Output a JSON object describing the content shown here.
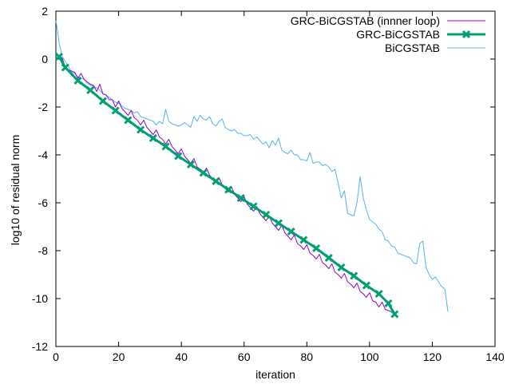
{
  "chart_data": {
    "type": "line",
    "xlabel": "iteration",
    "ylabel": "log10 of residual norm",
    "xlim": [
      0,
      140
    ],
    "ylim": [
      -12,
      2
    ],
    "xticks": [
      "0",
      "20",
      "40",
      "60",
      "80",
      "100",
      "120",
      "140"
    ],
    "yticks": [
      "2",
      "0",
      "-2",
      "-4",
      "-6",
      "-8",
      "-10",
      "-12"
    ],
    "grid": false,
    "legend_position": "top-right",
    "series": [
      {
        "name": "GRC-BiCGSTAB (innner loop)",
        "color": "#9400d3",
        "style": "thin",
        "x": [
          1,
          2,
          3,
          4,
          5,
          6,
          7,
          8,
          9,
          10,
          11,
          12,
          13,
          14,
          15,
          16,
          17,
          18,
          19,
          20,
          21,
          22,
          23,
          24,
          25,
          26,
          27,
          28,
          29,
          30,
          31,
          32,
          33,
          34,
          35,
          36,
          37,
          38,
          39,
          40,
          41,
          42,
          43,
          44,
          45,
          46,
          47,
          48,
          49,
          50,
          51,
          52,
          53,
          54,
          55,
          56,
          57,
          58,
          59,
          60,
          61,
          62,
          63,
          64,
          65,
          66,
          67,
          68,
          69,
          70,
          71,
          72,
          73,
          74,
          75,
          76,
          77,
          78,
          79,
          80,
          81,
          82,
          83,
          84,
          85,
          86,
          87,
          88,
          89,
          90,
          91,
          92,
          93,
          94,
          95,
          96,
          97,
          98,
          99,
          100,
          101,
          102,
          103,
          104,
          105,
          106,
          107,
          108
        ],
        "y": [
          0.1,
          0.05,
          -0.35,
          -0.45,
          -0.5,
          -0.55,
          -0.8,
          -0.6,
          -0.85,
          -0.95,
          -1.05,
          -1.1,
          -1.35,
          -1.05,
          -1.45,
          -1.5,
          -1.7,
          -1.7,
          -2.0,
          -1.75,
          -2.05,
          -2.2,
          -2.35,
          -2.15,
          -2.45,
          -2.55,
          -2.75,
          -2.55,
          -2.85,
          -3.0,
          -3.15,
          -2.95,
          -3.25,
          -3.35,
          -3.55,
          -3.35,
          -3.65,
          -3.8,
          -3.95,
          -3.75,
          -4.05,
          -4.2,
          -4.35,
          -4.15,
          -4.5,
          -4.6,
          -4.75,
          -4.55,
          -4.85,
          -5.0,
          -5.15,
          -4.95,
          -5.25,
          -5.4,
          -5.55,
          -5.35,
          -5.65,
          -5.8,
          -5.95,
          -5.75,
          -6.05,
          -6.2,
          -6.35,
          -6.15,
          -6.45,
          -6.6,
          -6.75,
          -6.55,
          -6.85,
          -7.0,
          -7.15,
          -6.95,
          -7.25,
          -7.4,
          -7.55,
          -7.35,
          -7.7,
          -7.8,
          -7.95,
          -7.75,
          -8.1,
          -8.2,
          -8.35,
          -8.15,
          -8.5,
          -8.6,
          -8.75,
          -8.55,
          -8.9,
          -9.0,
          -9.15,
          -8.95,
          -9.3,
          -9.4,
          -9.55,
          -9.35,
          -9.7,
          -9.8,
          -9.95,
          -9.75,
          -10.1,
          -10.15,
          -10.35,
          -10.15,
          -10.45,
          -10.5,
          -10.55,
          -10.6
        ]
      },
      {
        "name": "GRC-BiCGSTAB",
        "color": "#009e73",
        "style": "thick-markers",
        "x": [
          1,
          3,
          7,
          11,
          15,
          19,
          23,
          27,
          31,
          35,
          39,
          43,
          47,
          51,
          55,
          59,
          63,
          67,
          71,
          75,
          79,
          83,
          87,
          91,
          95,
          99,
          103,
          106,
          108
        ],
        "y": [
          0.1,
          -0.35,
          -0.9,
          -1.3,
          -1.75,
          -2.15,
          -2.55,
          -2.95,
          -3.3,
          -3.65,
          -4.05,
          -4.4,
          -4.75,
          -5.1,
          -5.45,
          -5.8,
          -6.15,
          -6.5,
          -6.85,
          -7.2,
          -7.55,
          -7.9,
          -8.3,
          -8.7,
          -9.05,
          -9.45,
          -9.8,
          -10.2,
          -10.65
        ]
      },
      {
        "name": "BiCGSTAB",
        "color": "#56b4e9",
        "style": "thin",
        "x": [
          0,
          0.5,
          1,
          2,
          3,
          4,
          5,
          6,
          7,
          8,
          9,
          10,
          11,
          12,
          13,
          14,
          15,
          16,
          17,
          18,
          19,
          20,
          21,
          22,
          23,
          24,
          25,
          26,
          27,
          28,
          29,
          30,
          31,
          32,
          33,
          34,
          35,
          36,
          37,
          38,
          39,
          40,
          41,
          42,
          43,
          44,
          45,
          46,
          47,
          48,
          49,
          50,
          51,
          52,
          53,
          54,
          55,
          56,
          57,
          58,
          59,
          60,
          61,
          62,
          63,
          64,
          65,
          66,
          67,
          68,
          69,
          70,
          71,
          72,
          73,
          74,
          75,
          76,
          77,
          78,
          79,
          80,
          81,
          82,
          83,
          84,
          85,
          86,
          87,
          88,
          89,
          90,
          91,
          92,
          93,
          94,
          95,
          96,
          97,
          98,
          99,
          100,
          101,
          102,
          103,
          104,
          105,
          106,
          107,
          108,
          109,
          110,
          111,
          112,
          113,
          114,
          115,
          116,
          117,
          118,
          119,
          120,
          121,
          122,
          123,
          124,
          125
        ],
        "y": [
          1.6,
          1.2,
          0.7,
          0.1,
          -0.1,
          -0.3,
          -0.55,
          -0.6,
          -0.75,
          -0.8,
          -0.85,
          -1.0,
          -1.1,
          -1.15,
          -1.2,
          -1.3,
          -1.45,
          -1.5,
          -1.6,
          -1.7,
          -1.8,
          -1.85,
          -1.95,
          -2.05,
          -2.1,
          -2.15,
          -2.25,
          -2.2,
          -2.4,
          -2.45,
          -2.5,
          -2.55,
          -2.6,
          -2.75,
          -2.6,
          -2.7,
          -2.1,
          -2.6,
          -2.7,
          -2.75,
          -2.8,
          -2.75,
          -2.65,
          -2.75,
          -2.85,
          -2.4,
          -2.6,
          -2.35,
          -2.5,
          -2.55,
          -2.4,
          -2.7,
          -2.8,
          -2.6,
          -2.5,
          -2.85,
          -2.95,
          -3.0,
          -2.95,
          -3.1,
          -3.1,
          -3.2,
          -3.2,
          -3.15,
          -3.35,
          -3.25,
          -3.4,
          -3.55,
          -3.45,
          -3.7,
          -3.4,
          -3.6,
          -3.3,
          -3.8,
          -3.9,
          -3.95,
          -3.8,
          -4.0,
          -4.0,
          -4.2,
          -4.2,
          -4.25,
          -3.9,
          -4.35,
          -4.3,
          -4.3,
          -4.45,
          -4.4,
          -4.5,
          -4.7,
          -4.6,
          -5.2,
          -5.8,
          -5.5,
          -6.45,
          -6.5,
          -6.55,
          -6.0,
          -4.9,
          -5.8,
          -6.3,
          -6.7,
          -6.8,
          -6.9,
          -7.1,
          -7.2,
          -7.55,
          -7.6,
          -7.8,
          -7.85,
          -8.1,
          -8.15,
          -8.2,
          -8.25,
          -8.3,
          -8.5,
          -8.55,
          -7.7,
          -7.6,
          -8.7,
          -9.0,
          -9.2,
          -9.1,
          -9.3,
          -9.5,
          -9.6,
          -10.55
        ]
      }
    ]
  }
}
